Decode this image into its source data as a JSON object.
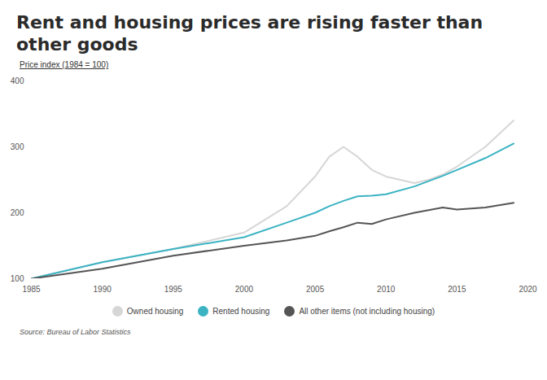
{
  "chart_data": {
    "type": "line",
    "title": "Rent and housing prices are rising faster than other goods",
    "subtitle": "Price index (1984 = 100)",
    "source": "Source: Bureau of Labor Statistics",
    "x": [
      1985,
      1990,
      1995,
      2000,
      2003,
      2005,
      2006,
      2007,
      2008,
      2009,
      2010,
      2012,
      2013,
      2014,
      2015,
      2017,
      2019
    ],
    "series": [
      {
        "name": "Owned housing",
        "color": "#d6d6d6",
        "values": [
          100,
          125,
          145,
          170,
          210,
          255,
          285,
          300,
          285,
          265,
          255,
          245,
          250,
          258,
          270,
          300,
          340
        ]
      },
      {
        "name": "Rented housing",
        "color": "#3bb3c3",
        "values": [
          100,
          125,
          145,
          163,
          185,
          200,
          210,
          218,
          225,
          226,
          228,
          240,
          248,
          256,
          265,
          283,
          305
        ]
      },
      {
        "name": "All other items (not including housing)",
        "color": "#555555",
        "values": [
          100,
          115,
          135,
          150,
          158,
          165,
          172,
          178,
          185,
          183,
          190,
          200,
          204,
          208,
          205,
          208,
          215
        ]
      }
    ],
    "xlim": [
      1985,
      2020
    ],
    "xticks": [
      1985,
      1990,
      1995,
      2000,
      2005,
      2010,
      2015,
      2020
    ],
    "ylim": [
      100,
      400
    ],
    "yticks": [
      100,
      200,
      300,
      400
    ],
    "grid": false,
    "legend": "bottom"
  }
}
